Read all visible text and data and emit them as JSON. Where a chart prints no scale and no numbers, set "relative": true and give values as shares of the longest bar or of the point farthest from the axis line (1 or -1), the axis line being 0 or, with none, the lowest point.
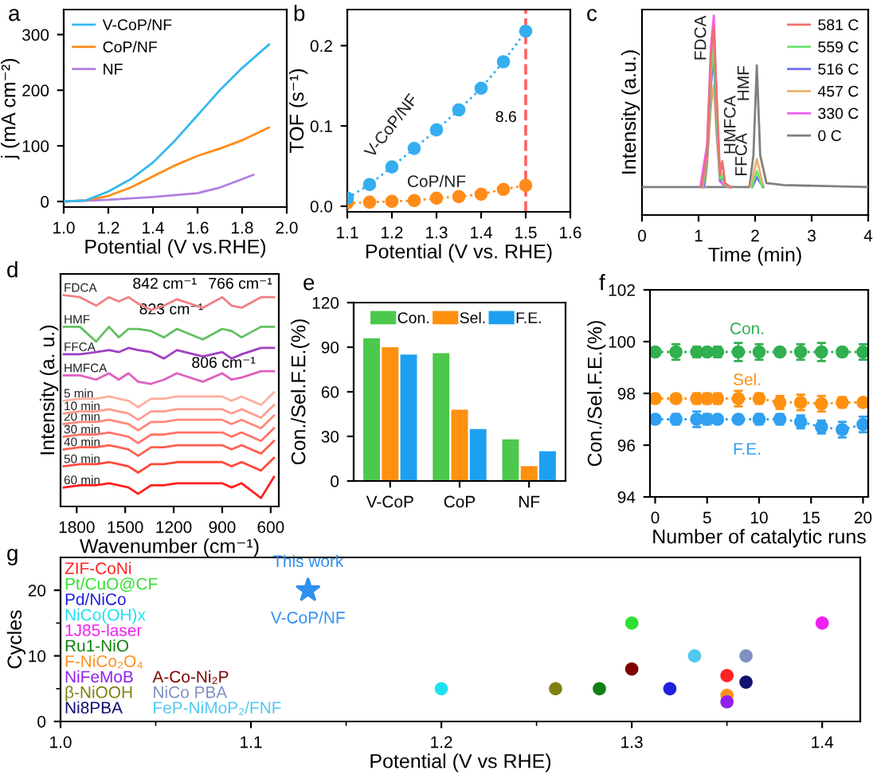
{
  "chart_data": [
    {
      "type": "line",
      "title": "a",
      "xlabel": "Potential (V vs.RHE)",
      "ylabel": "j (mA cm⁻²)",
      "xlim": [
        1.0,
        2.0
      ],
      "xticks": [
        {
          "value": 1.0,
          "label": "1.0"
        },
        1.2,
        1.4,
        1.6,
        1.8,
        {
          "value": 2.0,
          "label": "2.0"
        }
      ],
      "ylim": [
        -10,
        345
      ],
      "yticks": [
        0,
        100,
        200,
        300
      ],
      "legend": "top left",
      "line_style": "solid",
      "series": [
        {
          "name": "V-CoP/NF",
          "color": "#35b8f0",
          "x": [
            1.0,
            1.1,
            1.2,
            1.3,
            1.4,
            1.5,
            1.6,
            1.7,
            1.8,
            1.92
          ],
          "values": [
            0,
            2,
            18,
            40,
            70,
            110,
            155,
            200,
            240,
            282
          ]
        },
        {
          "name": "CoP/NF",
          "color": "#ff8c1a",
          "x": [
            1.0,
            1.1,
            1.2,
            1.3,
            1.4,
            1.5,
            1.6,
            1.7,
            1.8,
            1.92
          ],
          "values": [
            0,
            2,
            10,
            25,
            45,
            65,
            82,
            95,
            110,
            133
          ]
        },
        {
          "name": "NF",
          "color": "#b07fe0",
          "x": [
            1.0,
            1.2,
            1.4,
            1.6,
            1.7,
            1.8,
            1.85
          ],
          "values": [
            0,
            3,
            8,
            15,
            25,
            40,
            48
          ]
        }
      ]
    },
    {
      "type": "line",
      "title": "b",
      "xlabel": "Potential (V vs. RHE)",
      "ylabel": "TOF (s⁻¹)",
      "xlim": [
        1.1,
        1.6
      ],
      "xticks": [
        1.1,
        1.2,
        1.3,
        1.4,
        1.5,
        1.6
      ],
      "ylim": [
        -0.007,
        0.245
      ],
      "yticks": [
        {
          "value": 0.0,
          "label": "0.0"
        },
        0.1,
        0.2
      ],
      "marker": "circle",
      "line_style": "dotted",
      "x": [
        1.1,
        1.15,
        1.2,
        1.25,
        1.3,
        1.35,
        1.4,
        1.45,
        1.5
      ],
      "series": [
        {
          "name": "V-CoP/NF",
          "color": "#35aef0",
          "values": [
            0.01,
            0.027,
            0.049,
            0.072,
            0.095,
            0.12,
            0.147,
            0.18,
            0.218
          ]
        },
        {
          "name": "CoP/NF",
          "color": "#ff8c1a",
          "values": [
            0.004,
            0.005,
            0.006,
            0.007,
            0.01,
            0.012,
            0.015,
            0.021,
            0.026
          ]
        }
      ],
      "ref_lines": [
        {
          "axis": "x",
          "value": 1.5,
          "color": "#ff6060",
          "line_style": "dashed"
        }
      ],
      "annotations": [
        "8.6"
      ]
    },
    {
      "type": "line",
      "title": "c",
      "xlabel": "Time (min)",
      "ylabel": "Intensity (a.u.)",
      "relative": true,
      "line_style": "solid",
      "xlim": [
        0,
        4
      ],
      "xticks": [
        0,
        1,
        2,
        3,
        4
      ],
      "legend": "top right",
      "series": [
        {
          "name": "581 C",
          "color": "#f07070",
          "x": [
            1.05,
            1.15,
            1.22,
            1.27,
            1.32,
            1.38,
            1.42,
            1.47,
            1.56
          ],
          "values": [
            0.14,
            0.3,
            0.8,
            0.95,
            0.6,
            0.2,
            0.27,
            0.16,
            0.14
          ]
        },
        {
          "name": "559 C",
          "color": "#70e070",
          "x": [
            1.07,
            1.15,
            1.22,
            1.27,
            1.32,
            1.38,
            1.42,
            1.47,
            1.57,
            1.75,
            1.94,
            2.03,
            2.13
          ],
          "values": [
            0.14,
            0.28,
            0.7,
            0.85,
            0.5,
            0.18,
            0.2,
            0.15,
            0.14,
            null,
            0.14,
            0.22,
            0.14
          ]
        },
        {
          "name": "516 C",
          "color": "#7070f0",
          "x": [
            1.09,
            1.15,
            1.22,
            1.27,
            1.32,
            1.38,
            1.42,
            1.47,
            1.58,
            1.75,
            1.95,
            2.03,
            2.14
          ],
          "values": [
            0.14,
            0.27,
            0.65,
            0.8,
            0.45,
            0.17,
            0.19,
            0.15,
            0.14,
            null,
            0.14,
            0.19,
            0.14
          ]
        },
        {
          "name": "457 C",
          "color": "#f0b070",
          "x": [
            1.11,
            1.15,
            1.22,
            1.27,
            1.32,
            1.38,
            1.42,
            1.47,
            1.59,
            1.75,
            1.92,
            2.03,
            2.15
          ],
          "values": [
            0.14,
            0.25,
            0.55,
            0.65,
            0.4,
            0.17,
            0.21,
            0.15,
            0.14,
            null,
            0.14,
            0.28,
            0.14
          ]
        },
        {
          "name": "330 C",
          "color": "#f060f0",
          "x": [
            1.03,
            1.15,
            1.22,
            1.27,
            1.32,
            1.38,
            1.44,
            1.54
          ],
          "values": [
            0.14,
            0.35,
            0.85,
            1.0,
            0.55,
            0.17,
            0.15,
            0.14
          ]
        },
        {
          "name": "0 C",
          "color": "#808080",
          "x": [
            0,
            1.9,
            1.97,
            2.03,
            2.09,
            2.2,
            2.5,
            4
          ],
          "values": [
            0.14,
            0.14,
            0.3,
            0.75,
            0.3,
            0.16,
            0.15,
            0.14
          ]
        }
      ],
      "annotations": [
        {
          "text": "FDCA",
          "x": 1.27,
          "y": 1.0
        },
        {
          "text": "HMFCA",
          "x": 1.42,
          "y": 0.27
        },
        {
          "text": "FFCA",
          "x": 1.62,
          "y": 0.16
        },
        {
          "text": "HMF",
          "x": 2.03,
          "y": 0.75
        }
      ]
    },
    {
      "type": "line",
      "title": "d",
      "xlabel": "Wavenumber (cm⁻¹)",
      "ylabel": "Intensity (a. u.)",
      "relative": true,
      "line_style": "solid",
      "xlim": [
        1900,
        550
      ],
      "xticks": [
        1800,
        1500,
        1200,
        900,
        600
      ],
      "x": [
        1880,
        1780,
        1680,
        1600,
        1540,
        1480,
        1420,
        1340,
        1260,
        1180,
        1020,
        900,
        842,
        780,
        660,
        580
      ],
      "series": [
        {
          "name": "FDCA",
          "color": "#f08080",
          "values": [
            1.0,
            0.99,
            0.95,
            0.99,
            0.97,
            0.99,
            0.96,
            0.93,
            0.95,
            0.98,
            0.94,
            0.99,
            0.95,
            0.94,
            0.99,
            0.99
          ]
        },
        {
          "name": "HMF",
          "color": "#60c060",
          "values": [
            0.85,
            0.85,
            0.78,
            0.85,
            0.8,
            0.84,
            0.84,
            0.83,
            0.8,
            0.84,
            0.79,
            0.84,
            0.83,
            0.8,
            0.85,
            0.85
          ]
        },
        {
          "name": "FFCA",
          "color": "#a040c0",
          "values": [
            0.72,
            0.72,
            0.73,
            0.74,
            0.73,
            0.75,
            0.74,
            0.73,
            0.7,
            0.74,
            0.71,
            0.73,
            0.7,
            0.72,
            0.75,
            0.75
          ]
        },
        {
          "name": "HMFCA",
          "color": "#e060c0",
          "values": [
            0.62,
            0.62,
            0.6,
            0.63,
            0.6,
            0.63,
            0.59,
            0.58,
            0.6,
            0.63,
            0.59,
            0.63,
            0.6,
            0.61,
            0.64,
            0.64
          ]
        },
        {
          "name": "5 min",
          "color": "#ffb0a0",
          "values": [
            0.5,
            0.51,
            0.51,
            0.52,
            0.51,
            0.5,
            0.47,
            0.51,
            0.51,
            0.52,
            0.52,
            0.52,
            0.5,
            0.52,
            0.48,
            0.54
          ]
        },
        {
          "name": "10 min",
          "color": "#ff9c90",
          "values": [
            0.44,
            0.45,
            0.45,
            0.46,
            0.45,
            0.44,
            0.41,
            0.45,
            0.45,
            0.46,
            0.46,
            0.46,
            0.44,
            0.46,
            0.42,
            0.48
          ]
        },
        {
          "name": "20 min",
          "color": "#ff8878",
          "values": [
            0.39,
            0.4,
            0.4,
            0.41,
            0.4,
            0.39,
            0.36,
            0.4,
            0.4,
            0.41,
            0.41,
            0.41,
            0.39,
            0.41,
            0.37,
            0.43
          ]
        },
        {
          "name": "30 min",
          "color": "#ff7468",
          "values": [
            0.33,
            0.34,
            0.34,
            0.35,
            0.34,
            0.33,
            0.3,
            0.34,
            0.34,
            0.35,
            0.35,
            0.35,
            0.33,
            0.35,
            0.31,
            0.37
          ]
        },
        {
          "name": "40 min",
          "color": "#ff6050",
          "values": [
            0.27,
            0.28,
            0.28,
            0.29,
            0.28,
            0.27,
            0.24,
            0.28,
            0.28,
            0.29,
            0.29,
            0.29,
            0.27,
            0.29,
            0.25,
            0.31
          ]
        },
        {
          "name": "50 min",
          "color": "#ff4838",
          "values": [
            0.19,
            0.2,
            0.2,
            0.21,
            0.2,
            0.19,
            0.16,
            0.2,
            0.2,
            0.21,
            0.21,
            0.21,
            0.19,
            0.21,
            0.17,
            0.23
          ]
        },
        {
          "name": "60 min",
          "color": "#ff2020",
          "values": [
            0.09,
            0.1,
            0.1,
            0.11,
            0.1,
            0.09,
            0.06,
            0.1,
            0.1,
            0.11,
            0.11,
            0.11,
            0.09,
            0.11,
            0.04,
            0.14
          ]
        }
      ],
      "annotations": [
        "842 cm⁻¹",
        "823 cm⁻¹",
        "766 cm⁻¹",
        "806 cm⁻¹"
      ]
    },
    {
      "type": "bar",
      "title": "e",
      "ylabel": "Con./Sel.F.E.(%)",
      "categories": [
        "V-CoP",
        "CoP",
        "NF"
      ],
      "ylim": [
        0,
        120
      ],
      "yticks": [
        0,
        30,
        60,
        90,
        120
      ],
      "legend": "top",
      "series": [
        {
          "name": "Con.",
          "color": "#4cc84c",
          "values": [
            96,
            86,
            28
          ]
        },
        {
          "name": "Sel.",
          "color": "#ff9010",
          "values": [
            90,
            48,
            10
          ]
        },
        {
          "name": "F.E.",
          "color": "#1ea0f0",
          "values": [
            85,
            35,
            20
          ]
        }
      ]
    },
    {
      "type": "line",
      "title": "f",
      "xlabel": "Number of catalytic runs",
      "ylabel": "Con./Sel.F.E.(%)",
      "xlim": [
        -0.5,
        20.5
      ],
      "xticks": [
        0,
        5,
        10,
        15,
        20
      ],
      "ylim": [
        94,
        102
      ],
      "yticks": [
        94,
        96,
        98,
        100,
        102
      ],
      "marker": "circle",
      "line_style": "dotted",
      "x": [
        0,
        2,
        4,
        5,
        6,
        8,
        10,
        12,
        14,
        16,
        18,
        20
      ],
      "series": [
        {
          "name": "Con.",
          "color": "#30b050",
          "values": [
            99.6,
            99.6,
            99.6,
            99.6,
            99.6,
            99.6,
            99.6,
            99.6,
            99.6,
            99.6,
            99.6,
            99.6
          ],
          "errors": [
            0.1,
            0.3,
            0.2,
            0.15,
            0.2,
            0.35,
            0.3,
            0.1,
            0.3,
            0.35,
            0.15,
            0.3
          ]
        },
        {
          "name": "Sel.",
          "color": "#ff9010",
          "values": [
            97.8,
            97.8,
            97.8,
            97.8,
            97.8,
            97.8,
            97.8,
            97.65,
            97.65,
            97.6,
            97.65,
            97.65
          ],
          "errors": [
            0.1,
            0.1,
            0.2,
            0.2,
            0.2,
            0.3,
            0.2,
            0.25,
            0.3,
            0.3,
            0.2,
            0.15
          ]
        },
        {
          "name": "F.E.",
          "color": "#30a0f0",
          "values": [
            97.0,
            97.0,
            97.0,
            97.0,
            97.0,
            97.0,
            97.0,
            97.0,
            96.9,
            96.7,
            96.6,
            96.8
          ],
          "errors": [
            0.15,
            0.2,
            0.3,
            0.2,
            0.1,
            0.1,
            0.2,
            0.2,
            0.25,
            0.25,
            0.3,
            0.3
          ]
        }
      ]
    },
    {
      "type": "scatter",
      "title": "g",
      "xlabel": "Potential (V vs RHE)",
      "ylabel": "Cycles",
      "xlim": [
        1.0,
        1.42
      ],
      "xticks": [
        {
          "value": 1.0,
          "label": "1.0"
        },
        {
          "value": 1.05,
          "label": null
        },
        1.1,
        {
          "value": 1.15,
          "label": null
        },
        1.2,
        {
          "value": 1.25,
          "label": null
        },
        1.3,
        {
          "value": 1.35,
          "label": null
        },
        1.4
      ],
      "ylim": [
        0,
        25
      ],
      "yticks": [
        0,
        {
          "value": 5,
          "label": null
        },
        10,
        {
          "value": 15,
          "label": null
        },
        20
      ],
      "marker": "circle",
      "legend": "left",
      "series": [
        {
          "name": "ZIF-CoNi",
          "color": "#ff2020",
          "x": [
            1.35
          ],
          "values": [
            7
          ]
        },
        {
          "name": "Pt/CuO@CF",
          "color": "#30e030",
          "x": [
            1.3
          ],
          "values": [
            15
          ]
        },
        {
          "name": "Pd/NiCo",
          "color": "#2020e0",
          "x": [
            1.32
          ],
          "values": [
            5
          ]
        },
        {
          "name": "NiCo(OH)x",
          "color": "#20e0f0",
          "x": [
            1.2
          ],
          "values": [
            5
          ]
        },
        {
          "name": "1J85-laser",
          "color": "#f020f0",
          "x": [
            1.4
          ],
          "values": [
            15
          ]
        },
        {
          "name": "Ru1-NiO",
          "color": "#108010",
          "x": [
            1.283
          ],
          "values": [
            5
          ]
        },
        {
          "name": "F-NiCo₂O₄",
          "color": "#ff9020",
          "x": [
            1.35
          ],
          "values": [
            4
          ]
        },
        {
          "name": "NiFeMoB",
          "color": "#9020f0",
          "x": [
            1.35
          ],
          "values": [
            3
          ]
        },
        {
          "name": "β-NiOOH",
          "color": "#808010",
          "x": [
            1.26
          ],
          "values": [
            5
          ]
        },
        {
          "name": "Ni8PBA",
          "color": "#101070",
          "x": [
            1.36
          ],
          "values": [
            6
          ]
        },
        {
          "name": "A-Co-Ni₂P",
          "color": "#800000",
          "x": [
            1.3
          ],
          "values": [
            8
          ]
        },
        {
          "name": "NiCo PBA",
          "color": "#8090c0",
          "x": [
            1.36
          ],
          "values": [
            10
          ]
        },
        {
          "name": "FeP-NiMoP₂/FNF",
          "color": "#50c8f0",
          "x": [
            1.333
          ],
          "values": [
            10
          ]
        },
        {
          "name": "V-CoP/NF",
          "color": "#3090f0",
          "x": [
            1.13
          ],
          "values": [
            20
          ],
          "marker": "star"
        }
      ],
      "annotations": [
        {
          "text": "This work",
          "x": 1.13,
          "y": 20
        }
      ]
    }
  ]
}
